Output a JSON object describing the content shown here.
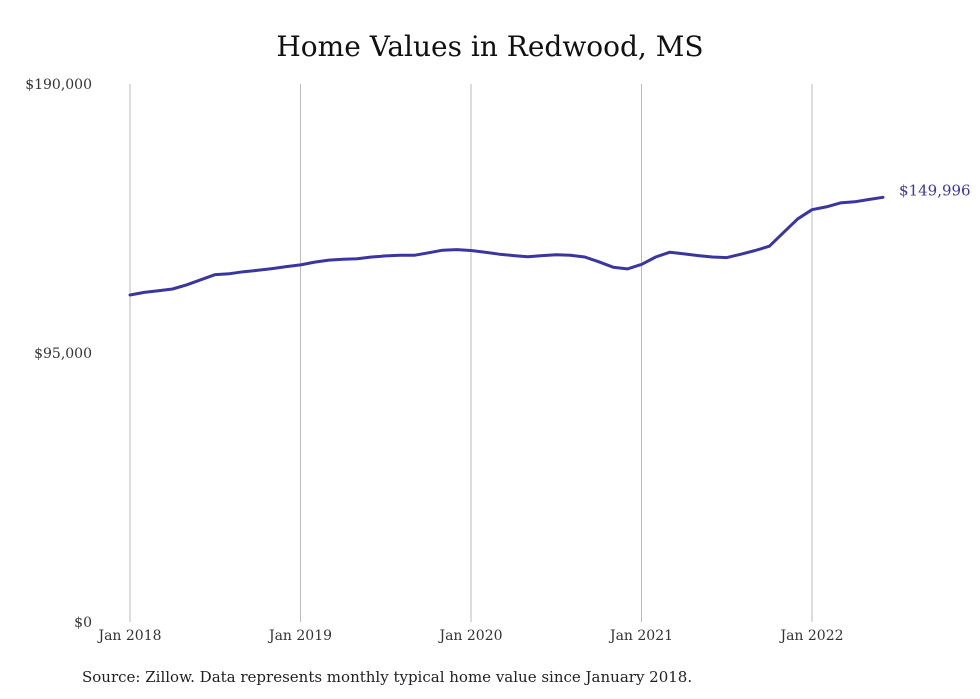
{
  "title": "Home Values in Redwood, MS",
  "source_note": "Source: Zillow. Data represents monthly typical home value since January 2018.",
  "line_color": "#3b35a0",
  "grid_color": "#bbbbbb",
  "chart_data": {
    "type": "line",
    "title": "Home Values in Redwood, MS",
    "xlabel": "",
    "ylabel": "",
    "ylim": [
      0,
      190000
    ],
    "yticks": [
      0,
      95000,
      190000
    ],
    "ytick_labels": [
      "$0",
      "$95,000",
      "$190,000"
    ],
    "xticks": [
      "2018-01",
      "2019-01",
      "2020-01",
      "2021-01",
      "2022-01"
    ],
    "xtick_labels": [
      "Jan 2018",
      "Jan 2019",
      "Jan 2020",
      "Jan 2021",
      "Jan 2022"
    ],
    "grid": "vertical",
    "end_label": "$149,996",
    "series": [
      {
        "points": [
          [
            "2018-01",
            115500
          ],
          [
            "2018-02",
            116400
          ],
          [
            "2018-03",
            117000
          ],
          [
            "2018-04",
            117600
          ],
          [
            "2018-05",
            119100
          ],
          [
            "2018-06",
            120900
          ],
          [
            "2018-07",
            122700
          ],
          [
            "2018-08",
            123000
          ],
          [
            "2018-09",
            123700
          ],
          [
            "2018-10",
            124200
          ],
          [
            "2018-11",
            124800
          ],
          [
            "2018-12",
            125500
          ],
          [
            "2019-01",
            126100
          ],
          [
            "2019-02",
            127100
          ],
          [
            "2019-03",
            127800
          ],
          [
            "2019-04",
            128100
          ],
          [
            "2019-05",
            128300
          ],
          [
            "2019-06",
            128900
          ],
          [
            "2019-07",
            129300
          ],
          [
            "2019-08",
            129500
          ],
          [
            "2019-09",
            129500
          ],
          [
            "2019-10",
            130400
          ],
          [
            "2019-11",
            131300
          ],
          [
            "2019-12",
            131500
          ],
          [
            "2020-01",
            131200
          ],
          [
            "2020-02",
            130600
          ],
          [
            "2020-03",
            129900
          ],
          [
            "2020-04",
            129400
          ],
          [
            "2020-05",
            129000
          ],
          [
            "2020-06",
            129400
          ],
          [
            "2020-07",
            129700
          ],
          [
            "2020-08",
            129500
          ],
          [
            "2020-09",
            128900
          ],
          [
            "2020-10",
            127200
          ],
          [
            "2020-11",
            125300
          ],
          [
            "2020-12",
            124700
          ],
          [
            "2021-01",
            126300
          ],
          [
            "2021-02",
            128900
          ],
          [
            "2021-03",
            130600
          ],
          [
            "2021-04",
            130000
          ],
          [
            "2021-05",
            129400
          ],
          [
            "2021-06",
            128900
          ],
          [
            "2021-07",
            128700
          ],
          [
            "2021-08",
            129900
          ],
          [
            "2021-09",
            131200
          ],
          [
            "2021-10",
            132700
          ],
          [
            "2021-11",
            137600
          ],
          [
            "2021-12",
            142400
          ],
          [
            "2022-01",
            145600
          ],
          [
            "2022-02",
            146600
          ],
          [
            "2022-03",
            148000
          ],
          [
            "2022-04",
            148400
          ],
          [
            "2022-05",
            149200
          ],
          [
            "2022-06",
            149996
          ]
        ]
      }
    ]
  }
}
